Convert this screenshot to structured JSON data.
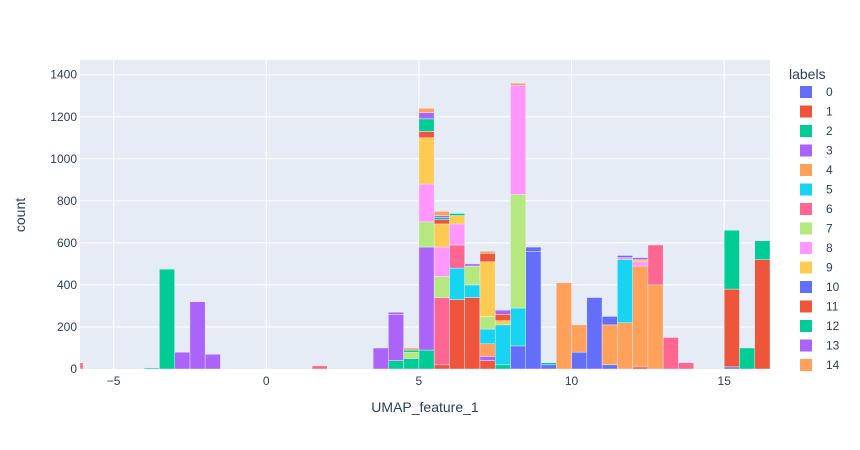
{
  "chart_data": {
    "type": "histogram",
    "barmode": "stack",
    "xlabel": "UMAP_feature_1",
    "ylabel": "count",
    "xlim": [
      -6.1,
      16.5
    ],
    "ylim": [
      0,
      1470
    ],
    "bin_start": -6,
    "bin_width": 0.5,
    "x_ticks": [
      -5,
      0,
      5,
      10,
      15
    ],
    "x_tick_labels": [
      "−5",
      "0",
      "5",
      "10",
      "15"
    ],
    "y_ticks": [
      0,
      200,
      400,
      600,
      800,
      1000,
      1200,
      1400
    ],
    "grid": true,
    "legend": {
      "title": "labels",
      "position": "right"
    },
    "series": [
      {
        "name": "0",
        "color": "#636efa",
        "bins": {
          "8.75": 560,
          "11.25": 20,
          "10.25": 80,
          "10.75": 340,
          "11.25b": 0,
          "15.25": 10,
          "8.25": 110,
          "9.25": 20
        }
      },
      {
        "name": "1",
        "color": "#EF553B",
        "bins": {
          "5.75": 20,
          "6.25": 330,
          "6.75": 340,
          "7.25": 40,
          "15.25": 370,
          "16.25": 520,
          "12.25": 10
        }
      },
      {
        "name": "2",
        "color": "#00cc96",
        "bins": {
          "4.25": 40,
          "4.75": 50,
          "5.25": 90,
          "7.75": 20,
          "9.25": 10,
          "15.25": 280,
          "15.75": 100,
          "16.25": 90
        }
      },
      {
        "name": "3",
        "color": "#ab63fa",
        "bins": {
          "-2.25": 320,
          "-1.75": 70,
          "-2.75": 80,
          "3.75": 100,
          "4.25": 220,
          "5.25": 490,
          "7.25": 20
        }
      },
      {
        "name": "4",
        "color": "#FFA15A",
        "bins": {
          "9.75": 410,
          "10.25": 130,
          "11.25": 190,
          "11.75": 220,
          "12.25": 480,
          "12.75": 400,
          "7.25": 60
        }
      },
      {
        "name": "5",
        "color": "#19d3f3",
        "bins": {
          "6.25": 150,
          "6.75": 60,
          "7.25": 70,
          "7.75": 190,
          "8.25": 180,
          "11.75": 300,
          "11.25": 0
        }
      },
      {
        "name": "6",
        "color": "#FF6692",
        "bins": {
          "-6.25": 30,
          "1.75": 15,
          "5.75": 320,
          "6.25": 110,
          "12.75": 190,
          "13.25": 150,
          "13.75": 30
        }
      },
      {
        "name": "7",
        "color": "#B6E880",
        "bins": {
          "5.25": 120,
          "5.75": 100,
          "6.75": 90,
          "7.25": 60,
          "8.25": 540,
          "4.75": 30
        }
      },
      {
        "name": "8",
        "color": "#FF97FF",
        "bins": {
          "5.25": 180,
          "5.75": 140,
          "6.25": 100,
          "8.25": 520,
          "11.75": 10,
          "12.25": 20
        }
      },
      {
        "name": "9",
        "color": "#FECB52",
        "bins": {
          "5.25": 220,
          "5.75": 110,
          "6.25": 40,
          "7.25": 260,
          "7.75": 20,
          "12.25": 10
        }
      },
      {
        "name": "10",
        "color": "#636efa",
        "bins": {
          "11.25": 40,
          "11.75": 10,
          "8.75": 20
        }
      },
      {
        "name": "11",
        "color": "#EF553B",
        "bins": {
          "5.25": 30,
          "5.75": 20,
          "7.25": 40,
          "7.75": 30
        }
      },
      {
        "name": "12",
        "color": "#00cc96",
        "bins": {
          "-3.25": 475,
          "-3.75": 5,
          "4.75": 10,
          "5.25": 60,
          "5.75": 10,
          "6.25": 10
        }
      },
      {
        "name": "13",
        "color": "#ab63fa",
        "bins": {
          "4.25": 10,
          "5.25": 30,
          "5.75": 10,
          "6.75": 10,
          "7.75": 20,
          "12.25": 10
        }
      },
      {
        "name": "14",
        "color": "#FFA15A",
        "bins": {
          "4.75": 10,
          "5.25": 20,
          "5.75": 20,
          "7.25": 10,
          "8.25": 10
        }
      }
    ]
  }
}
